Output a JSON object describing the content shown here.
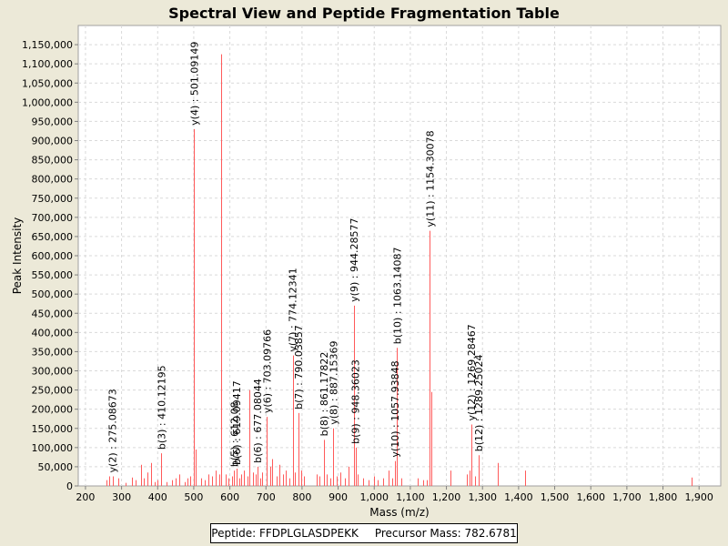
{
  "chart_data": {
    "type": "bar",
    "title": "Spectral View and Peptide Fragmentation Table",
    "xlabel": "Mass (m/z)",
    "ylabel": "Peak Intensity",
    "xlim": [
      180,
      1960
    ],
    "ylim": [
      0,
      1200000
    ],
    "x_ticks": [
      200,
      300,
      400,
      500,
      600,
      700,
      800,
      900,
      1000,
      1100,
      1200,
      1300,
      1400,
      1500,
      1600,
      1700,
      1800,
      1900
    ],
    "x_tick_labels": [
      "200",
      "300",
      "400",
      "500",
      "600",
      "700",
      "800",
      "900",
      "1,000",
      "1,100",
      "1,200",
      "1,300",
      "1,400",
      "1,500",
      "1,600",
      "1,700",
      "1,800",
      "1,900"
    ],
    "y_ticks": [
      0,
      50000,
      100000,
      150000,
      200000,
      250000,
      300000,
      350000,
      400000,
      450000,
      500000,
      550000,
      600000,
      650000,
      700000,
      750000,
      800000,
      850000,
      900000,
      950000,
      1000000,
      1050000,
      1100000,
      1150000
    ],
    "y_tick_labels": [
      "0",
      "50,000",
      "100,000",
      "150,000",
      "200,000",
      "250,000",
      "300,000",
      "350,000",
      "400,000",
      "450,000",
      "500,000",
      "550,000",
      "600,000",
      "650,000",
      "700,000",
      "750,000",
      "800,000",
      "850,000",
      "900,000",
      "950,000",
      "1,000,000",
      "1,050,000",
      "1,100,000",
      "1,150,000"
    ],
    "peaks": [
      {
        "mz": 258,
        "intensity": 15000
      },
      {
        "mz": 265,
        "intensity": 25000
      },
      {
        "mz": 275.08673,
        "intensity": 25000
      },
      {
        "mz": 290,
        "intensity": 20000
      },
      {
        "mz": 310,
        "intensity": 8000
      },
      {
        "mz": 330,
        "intensity": 22000
      },
      {
        "mz": 338,
        "intensity": 15000
      },
      {
        "mz": 355,
        "intensity": 55000
      },
      {
        "mz": 362,
        "intensity": 20000
      },
      {
        "mz": 372,
        "intensity": 35000
      },
      {
        "mz": 382,
        "intensity": 60000
      },
      {
        "mz": 392,
        "intensity": 10000
      },
      {
        "mz": 400,
        "intensity": 15000
      },
      {
        "mz": 410.12195,
        "intensity": 85000
      },
      {
        "mz": 425,
        "intensity": 10000
      },
      {
        "mz": 440,
        "intensity": 15000
      },
      {
        "mz": 450,
        "intensity": 20000
      },
      {
        "mz": 460,
        "intensity": 30000
      },
      {
        "mz": 475,
        "intensity": 10000
      },
      {
        "mz": 483,
        "intensity": 20000
      },
      {
        "mz": 490,
        "intensity": 25000
      },
      {
        "mz": 501.09149,
        "intensity": 930000
      },
      {
        "mz": 504,
        "intensity": 95000
      },
      {
        "mz": 520,
        "intensity": 20000
      },
      {
        "mz": 530,
        "intensity": 15000
      },
      {
        "mz": 540,
        "intensity": 30000
      },
      {
        "mz": 550,
        "intensity": 25000
      },
      {
        "mz": 560,
        "intensity": 40000
      },
      {
        "mz": 570,
        "intensity": 30000
      },
      {
        "mz": 576,
        "intensity": 1125000
      },
      {
        "mz": 588,
        "intensity": 30000
      },
      {
        "mz": 596,
        "intensity": 20000
      },
      {
        "mz": 606,
        "intensity": 25000
      },
      {
        "mz": 612.08,
        "intensity": 40000
      },
      {
        "mz": 619.09417,
        "intensity": 45000
      },
      {
        "mz": 625,
        "intensity": 20000
      },
      {
        "mz": 632,
        "intensity": 30000
      },
      {
        "mz": 640,
        "intensity": 40000
      },
      {
        "mz": 648,
        "intensity": 25000
      },
      {
        "mz": 655,
        "intensity": 250000
      },
      {
        "mz": 663,
        "intensity": 35000
      },
      {
        "mz": 671,
        "intensity": 30000
      },
      {
        "mz": 677.08044,
        "intensity": 50000
      },
      {
        "mz": 684,
        "intensity": 20000
      },
      {
        "mz": 690,
        "intensity": 35000
      },
      {
        "mz": 703.09766,
        "intensity": 180000
      },
      {
        "mz": 712,
        "intensity": 50000
      },
      {
        "mz": 718,
        "intensity": 70000
      },
      {
        "mz": 730,
        "intensity": 25000
      },
      {
        "mz": 738,
        "intensity": 55000
      },
      {
        "mz": 748,
        "intensity": 30000
      },
      {
        "mz": 756,
        "intensity": 40000
      },
      {
        "mz": 764,
        "intensity": 20000
      },
      {
        "mz": 774.12341,
        "intensity": 340000
      },
      {
        "mz": 781,
        "intensity": 35000
      },
      {
        "mz": 790.03857,
        "intensity": 190000
      },
      {
        "mz": 798,
        "intensity": 40000
      },
      {
        "mz": 806,
        "intensity": 25000
      },
      {
        "mz": 840,
        "intensity": 30000
      },
      {
        "mz": 848,
        "intensity": 25000
      },
      {
        "mz": 861.17822,
        "intensity": 120000
      },
      {
        "mz": 869,
        "intensity": 30000
      },
      {
        "mz": 878,
        "intensity": 20000
      },
      {
        "mz": 887.15369,
        "intensity": 150000
      },
      {
        "mz": 895,
        "intensity": 25000
      },
      {
        "mz": 905,
        "intensity": 35000
      },
      {
        "mz": 918,
        "intensity": 20000
      },
      {
        "mz": 930,
        "intensity": 50000
      },
      {
        "mz": 944.28577,
        "intensity": 470000
      },
      {
        "mz": 948.36023,
        "intensity": 100000
      },
      {
        "mz": 955,
        "intensity": 30000
      },
      {
        "mz": 968,
        "intensity": 20000
      },
      {
        "mz": 985,
        "intensity": 15000
      },
      {
        "mz": 1000,
        "intensity": 25000
      },
      {
        "mz": 1010,
        "intensity": 15000
      },
      {
        "mz": 1025,
        "intensity": 20000
      },
      {
        "mz": 1040,
        "intensity": 40000
      },
      {
        "mz": 1050,
        "intensity": 20000
      },
      {
        "mz": 1057.93848,
        "intensity": 65000
      },
      {
        "mz": 1063.14087,
        "intensity": 360000
      },
      {
        "mz": 1075,
        "intensity": 20000
      },
      {
        "mz": 1120,
        "intensity": 20000
      },
      {
        "mz": 1135,
        "intensity": 15000
      },
      {
        "mz": 1145,
        "intensity": 15000
      },
      {
        "mz": 1154.30078,
        "intensity": 665000
      },
      {
        "mz": 1158,
        "intensity": 245000
      },
      {
        "mz": 1210,
        "intensity": 40000
      },
      {
        "mz": 1256,
        "intensity": 30000
      },
      {
        "mz": 1265,
        "intensity": 40000
      },
      {
        "mz": 1269.28467,
        "intensity": 160000
      },
      {
        "mz": 1280,
        "intensity": 25000
      },
      {
        "mz": 1289.25024,
        "intensity": 80000
      },
      {
        "mz": 1342,
        "intensity": 60000
      },
      {
        "mz": 1418,
        "intensity": 40000
      },
      {
        "mz": 1880,
        "intensity": 22000
      }
    ],
    "annotations": [
      {
        "mz": 275.08673,
        "intensity": 25000,
        "label": "y(2) : 275.08673"
      },
      {
        "mz": 410.12195,
        "intensity": 85000,
        "label": "b(3) : 410.12195"
      },
      {
        "mz": 501.09149,
        "intensity": 930000,
        "label": "y(4) : 501.09149"
      },
      {
        "mz": 612.08,
        "intensity": 40000,
        "label": "b(5) : 612.08"
      },
      {
        "mz": 619.09417,
        "intensity": 45000,
        "label": "b(6) : 619.09417"
      },
      {
        "mz": 677.08044,
        "intensity": 50000,
        "label": "b(6) : 677.08044"
      },
      {
        "mz": 703.09766,
        "intensity": 180000,
        "label": "y(6) : 703.09766"
      },
      {
        "mz": 774.12341,
        "intensity": 340000,
        "label": "y(7) : 774.12341"
      },
      {
        "mz": 790.03857,
        "intensity": 190000,
        "label": "b(7) : 790.03857"
      },
      {
        "mz": 861.17822,
        "intensity": 120000,
        "label": "b(8) : 861.17822"
      },
      {
        "mz": 887.15369,
        "intensity": 150000,
        "label": "y(8) : 887.15369"
      },
      {
        "mz": 944.28577,
        "intensity": 470000,
        "label": "y(9) : 944.28577"
      },
      {
        "mz": 948.36023,
        "intensity": 100000,
        "label": "b(9) : 948.36023"
      },
      {
        "mz": 1057.93848,
        "intensity": 65000,
        "label": "y(10) : 1057.93848"
      },
      {
        "mz": 1063.14087,
        "intensity": 360000,
        "label": "b(10) : 1063.14087"
      },
      {
        "mz": 1154.30078,
        "intensity": 665000,
        "label": "y(11) : 1154.30078"
      },
      {
        "mz": 1269.28467,
        "intensity": 160000,
        "label": "y(12) : 1269.28467"
      },
      {
        "mz": 1289.25024,
        "intensity": 80000,
        "label": "b(12) : 1289.25024"
      }
    ],
    "colors": {
      "peak": "#ff5a5a",
      "background": "#ffffff",
      "frame": "#ece9d8"
    }
  },
  "footer": {
    "peptide_label": "Peptide: FFDPLGLASDPEKK",
    "precursor_label": "Precursor Mass: 782.6781"
  }
}
